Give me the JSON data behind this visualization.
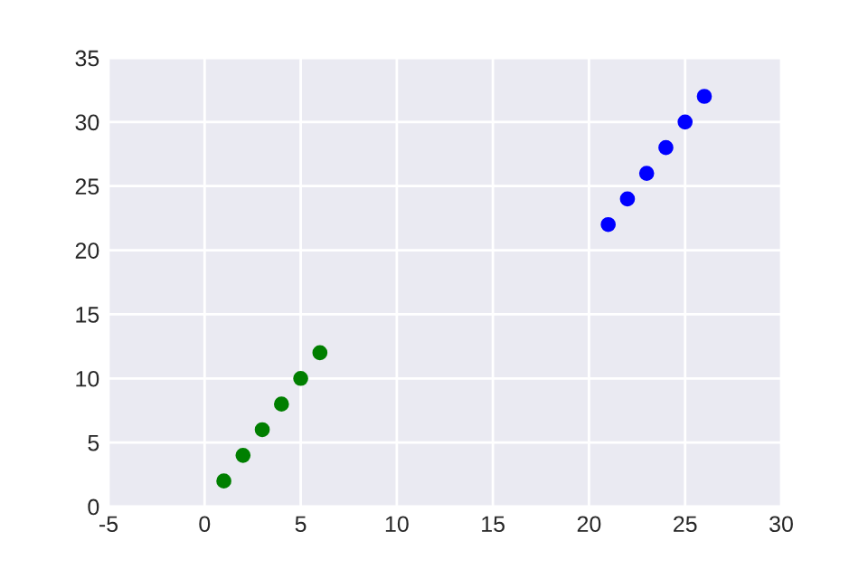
{
  "chart_data": {
    "type": "scatter",
    "series": [
      {
        "color": "#0000ff",
        "x": [
          21,
          22,
          23,
          24,
          25,
          26
        ],
        "values": [
          22,
          24,
          26,
          28,
          30,
          32
        ]
      },
      {
        "color": "#007f00",
        "x": [
          1,
          2,
          3,
          4,
          5,
          6
        ],
        "values": [
          2,
          4,
          6,
          8,
          10,
          12
        ]
      }
    ],
    "xlim": [
      -5,
      30
    ],
    "xticks": [
      -5,
      0,
      5,
      10,
      15,
      20,
      25,
      30
    ],
    "ylim": [
      0,
      35
    ],
    "yticks": [
      0,
      5,
      10,
      15,
      20,
      25,
      30,
      35
    ],
    "grid": true,
    "marker": "circle"
  }
}
